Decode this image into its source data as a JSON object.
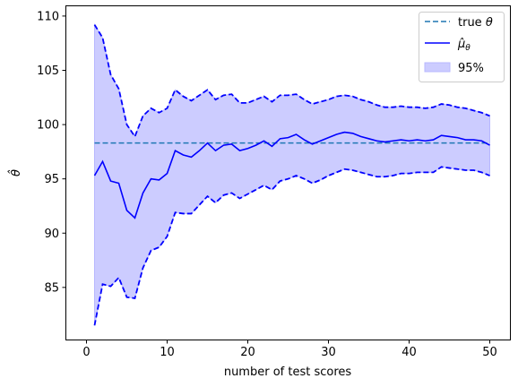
{
  "chart_data": {
    "type": "line",
    "xlabel": "number of test scores",
    "ylabel": "θ̂",
    "xlim": [
      -2.5,
      52.5
    ],
    "ylim": [
      80.2,
      110.9
    ],
    "xticks": [
      0,
      10,
      20,
      30,
      40,
      50
    ],
    "yticks": [
      85,
      90,
      95,
      100,
      105,
      110
    ],
    "grid": false,
    "legend_position": "top-right",
    "x": [
      1,
      2,
      3,
      4,
      5,
      6,
      7,
      8,
      9,
      10,
      11,
      12,
      13,
      14,
      15,
      16,
      17,
      18,
      19,
      20,
      21,
      22,
      23,
      24,
      25,
      26,
      27,
      28,
      29,
      30,
      31,
      32,
      33,
      34,
      35,
      36,
      37,
      38,
      39,
      40,
      41,
      42,
      43,
      44,
      45,
      46,
      47,
      48,
      49,
      50
    ],
    "true_theta": 98.3,
    "series": [
      {
        "name": "$\\hat{\\mu}_\\theta$",
        "role": "estimate",
        "color": "#0000ff",
        "style": "solid",
        "values": [
          95.3,
          96.6,
          94.8,
          94.6,
          92.1,
          91.4,
          93.7,
          95.0,
          94.9,
          95.5,
          97.6,
          97.2,
          97.0,
          97.6,
          98.3,
          97.6,
          98.1,
          98.2,
          97.6,
          97.8,
          98.1,
          98.5,
          98.0,
          98.7,
          98.8,
          99.1,
          98.6,
          98.2,
          98.5,
          98.8,
          99.1,
          99.3,
          99.2,
          98.9,
          98.7,
          98.5,
          98.4,
          98.5,
          98.6,
          98.5,
          98.6,
          98.5,
          98.6,
          99.0,
          98.9,
          98.8,
          98.6,
          98.6,
          98.5,
          98.1
        ]
      },
      {
        "name": "95%",
        "role": "upper_bound",
        "color": "#0000ff",
        "style": "dashed",
        "values": [
          109.2,
          108.0,
          104.6,
          103.3,
          100.0,
          98.9,
          100.8,
          101.5,
          101.1,
          101.5,
          103.2,
          102.6,
          102.2,
          102.7,
          103.2,
          102.3,
          102.7,
          102.8,
          102.0,
          102.0,
          102.3,
          102.6,
          102.1,
          102.7,
          102.7,
          102.8,
          102.3,
          101.9,
          102.1,
          102.3,
          102.6,
          102.7,
          102.6,
          102.3,
          102.1,
          101.8,
          101.6,
          101.6,
          101.7,
          101.6,
          101.6,
          101.5,
          101.6,
          101.9,
          101.8,
          101.6,
          101.5,
          101.3,
          101.1,
          100.8
        ]
      },
      {
        "name": "95%",
        "role": "lower_bound",
        "color": "#0000ff",
        "style": "dashed",
        "values": [
          81.5,
          85.3,
          85.1,
          85.9,
          84.1,
          84.0,
          86.8,
          88.4,
          88.7,
          89.7,
          91.9,
          91.8,
          91.8,
          92.6,
          93.4,
          92.8,
          93.5,
          93.7,
          93.2,
          93.6,
          94.0,
          94.4,
          94.0,
          94.8,
          95.0,
          95.3,
          95.0,
          94.6,
          94.9,
          95.3,
          95.6,
          95.9,
          95.8,
          95.6,
          95.4,
          95.2,
          95.2,
          95.3,
          95.5,
          95.5,
          95.6,
          95.6,
          95.6,
          96.1,
          96.0,
          95.9,
          95.8,
          95.8,
          95.6,
          95.3
        ]
      }
    ],
    "legend": [
      {
        "label": "true $\\theta$",
        "kind": "dashed-line",
        "color": "#1f77b4"
      },
      {
        "label": "$\\hat{\\mu}_\\theta$",
        "kind": "solid-line",
        "color": "#0000ff"
      },
      {
        "label": "95%",
        "kind": "fill-patch",
        "color": "#0000ff"
      }
    ],
    "fill_color": "#ccccff",
    "fill_edge": "#b8b8ff",
    "true_color": "#1f77b4"
  }
}
